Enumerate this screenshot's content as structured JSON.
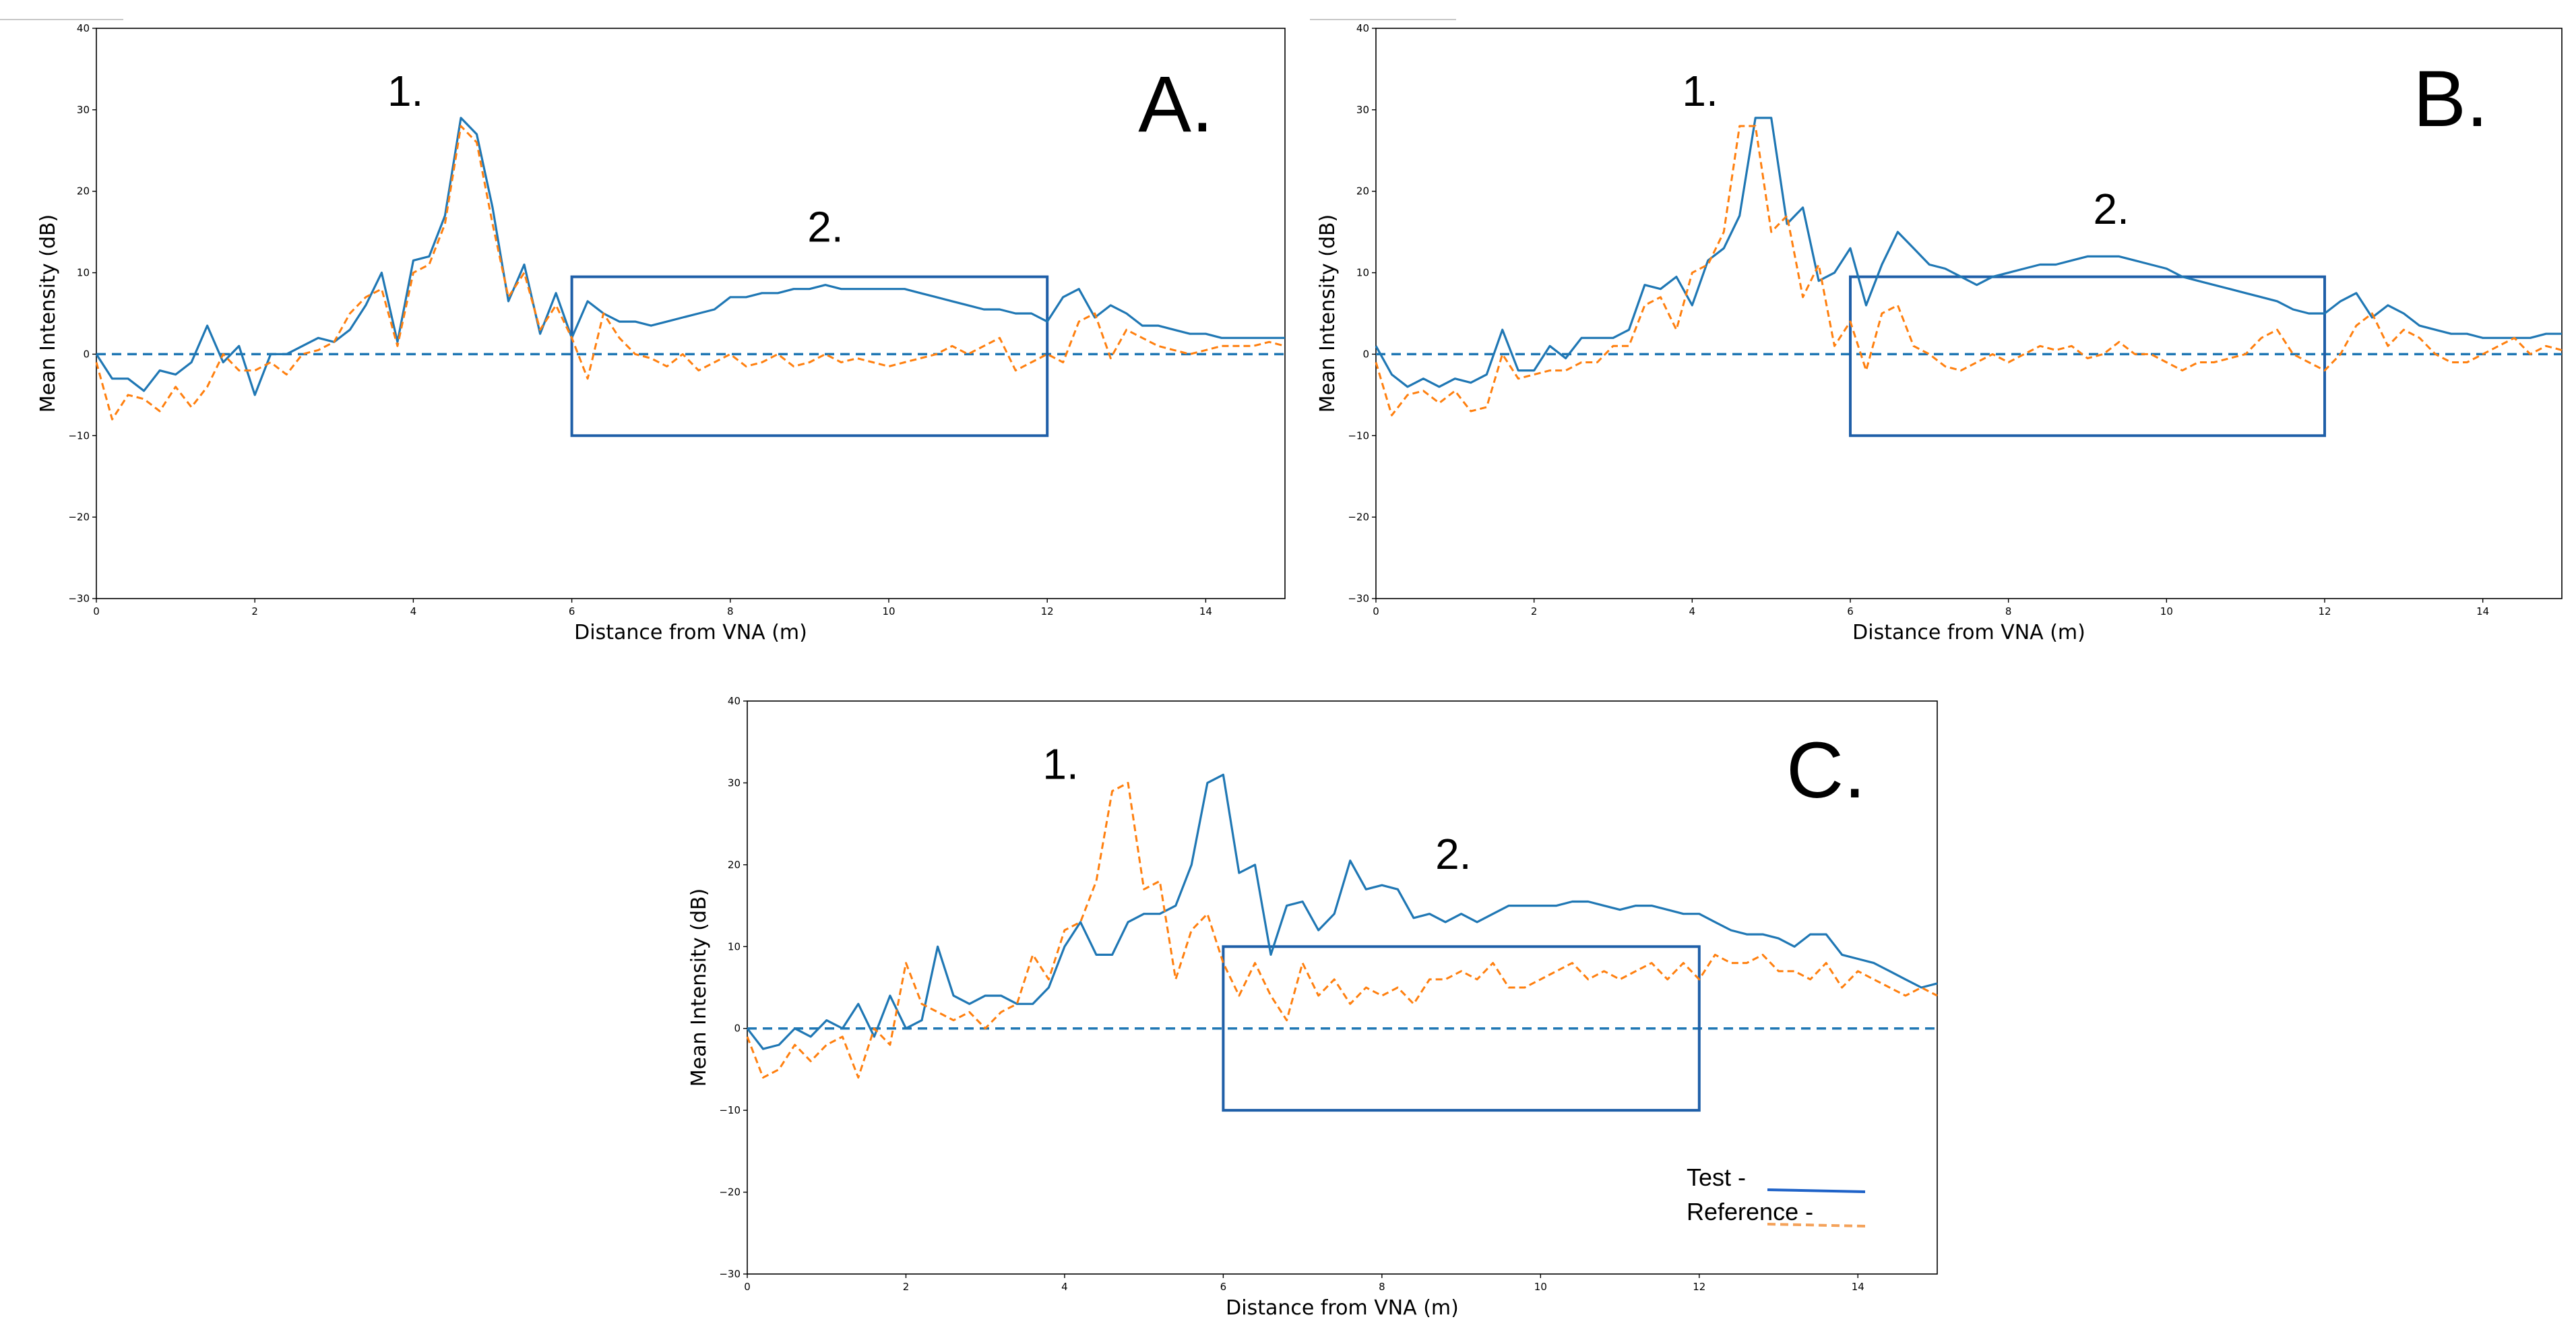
{
  "chart_data": [
    {
      "panel": "A.",
      "type": "line",
      "xlabel": "Distance from VNA (m)",
      "ylabel": "Mean Intensity (dB)",
      "xlim": [
        0,
        15
      ],
      "ylim": [
        -30,
        40
      ],
      "xticks": [
        0,
        2,
        4,
        6,
        8,
        10,
        12,
        14
      ],
      "yticks": [
        -30,
        -20,
        -10,
        0,
        10,
        20,
        30,
        40
      ],
      "baseline": 0,
      "annotations": [
        {
          "label": "1.",
          "x": 3.9,
          "y": 30.5
        },
        {
          "label": "2.",
          "x": 9.2,
          "y": 13.8
        }
      ],
      "region_box": {
        "x0": 6,
        "x1": 12,
        "y0": -10,
        "y1": 9.5
      },
      "series": [
        {
          "name": "Test",
          "x": [
            0,
            0.2,
            0.4,
            0.6,
            0.8,
            1.0,
            1.2,
            1.4,
            1.6,
            1.8,
            2.0,
            2.2,
            2.4,
            2.6,
            2.8,
            3.0,
            3.2,
            3.4,
            3.6,
            3.8,
            4.0,
            4.2,
            4.4,
            4.6,
            4.8,
            5.0,
            5.2,
            5.4,
            5.6,
            5.8,
            6.0,
            6.2,
            6.4,
            6.6,
            6.8,
            7.0,
            7.2,
            7.4,
            7.6,
            7.8,
            8.0,
            8.2,
            8.4,
            8.6,
            8.8,
            9.0,
            9.2,
            9.4,
            9.6,
            9.8,
            10.0,
            10.2,
            10.4,
            10.6,
            10.8,
            11.0,
            11.2,
            11.4,
            11.6,
            11.8,
            12.0,
            12.2,
            12.4,
            12.6,
            12.8,
            13.0,
            13.2,
            13.4,
            13.6,
            13.8,
            14.0,
            14.2,
            14.4,
            14.6,
            14.8,
            15.0
          ],
          "values": [
            0,
            -3,
            -3,
            -4.5,
            -2,
            -2.5,
            -1,
            3.5,
            -1,
            1,
            -5,
            0,
            0,
            1,
            2,
            1.5,
            3,
            6,
            10,
            1.5,
            11.5,
            12,
            17,
            29,
            27,
            18,
            6.5,
            11,
            2.5,
            7.5,
            2,
            6.5,
            5,
            4,
            4,
            3.5,
            4,
            4.5,
            5,
            5.5,
            7,
            7,
            7.5,
            7.5,
            8,
            8,
            8.5,
            8,
            8,
            8,
            8,
            8,
            7.5,
            7,
            6.5,
            6,
            5.5,
            5.5,
            5,
            5,
            4,
            7,
            8,
            4.5,
            6,
            5,
            3.5,
            3.5,
            3,
            2.5,
            2.5,
            2,
            2,
            2,
            2,
            2
          ]
        },
        {
          "name": "Reference",
          "x": [
            0,
            0.2,
            0.4,
            0.6,
            0.8,
            1.0,
            1.2,
            1.4,
            1.6,
            1.8,
            2.0,
            2.2,
            2.4,
            2.6,
            2.8,
            3.0,
            3.2,
            3.4,
            3.6,
            3.8,
            4.0,
            4.2,
            4.4,
            4.6,
            4.8,
            5.0,
            5.2,
            5.4,
            5.6,
            5.8,
            6.0,
            6.2,
            6.4,
            6.6,
            6.8,
            7.0,
            7.2,
            7.4,
            7.6,
            7.8,
            8.0,
            8.2,
            8.4,
            8.6,
            8.8,
            9.0,
            9.2,
            9.4,
            9.6,
            9.8,
            10.0,
            10.2,
            10.4,
            10.6,
            10.8,
            11.0,
            11.2,
            11.4,
            11.6,
            11.8,
            12.0,
            12.2,
            12.4,
            12.6,
            12.8,
            13.0,
            13.2,
            13.4,
            13.6,
            13.8,
            14.0,
            14.2,
            14.4,
            14.6,
            14.8,
            15.0
          ],
          "values": [
            -1,
            -8,
            -5,
            -5.5,
            -7,
            -4,
            -6.5,
            -4,
            0,
            -2,
            -2,
            -1,
            -2.5,
            0,
            0.5,
            1.5,
            5,
            7,
            8,
            1,
            10,
            11,
            16,
            28,
            26,
            16,
            7,
            10,
            3,
            6,
            2,
            -3,
            5,
            2,
            0,
            -0.5,
            -1.5,
            0,
            -2,
            -1,
            0,
            -1.5,
            -1,
            0,
            -1.5,
            -1,
            0,
            -1,
            -0.5,
            -1,
            -1.5,
            -1,
            -0.5,
            0,
            1,
            0,
            1,
            2,
            -2,
            -1,
            0,
            -1,
            4,
            5,
            -0.5,
            3,
            2,
            1,
            0.5,
            0,
            0.5,
            1,
            1,
            1,
            1.5,
            1
          ]
        }
      ]
    },
    {
      "panel": "B.",
      "type": "line",
      "xlabel": "Distance from VNA (m)",
      "ylabel": "Mean Intensity (dB)",
      "xlim": [
        0,
        15
      ],
      "ylim": [
        -30,
        40
      ],
      "xticks": [
        0,
        2,
        4,
        6,
        8,
        10,
        12,
        14
      ],
      "yticks": [
        -30,
        -20,
        -10,
        0,
        10,
        20,
        30,
        40
      ],
      "baseline": 0,
      "annotations": [
        {
          "label": "1.",
          "x": 4.1,
          "y": 30.5
        },
        {
          "label": "2.",
          "x": 9.3,
          "y": 16
        }
      ],
      "region_box": {
        "x0": 6,
        "x1": 12,
        "y0": -10,
        "y1": 9.5
      },
      "series": [
        {
          "name": "Test",
          "x": [
            0,
            0.2,
            0.4,
            0.6,
            0.8,
            1.0,
            1.2,
            1.4,
            1.6,
            1.8,
            2.0,
            2.2,
            2.4,
            2.6,
            2.8,
            3.0,
            3.2,
            3.4,
            3.6,
            3.8,
            4.0,
            4.2,
            4.4,
            4.6,
            4.8,
            5.0,
            5.2,
            5.4,
            5.6,
            5.8,
            6.0,
            6.2,
            6.4,
            6.6,
            6.8,
            7.0,
            7.2,
            7.4,
            7.6,
            7.8,
            8.0,
            8.2,
            8.4,
            8.6,
            8.8,
            9.0,
            9.2,
            9.4,
            9.6,
            9.8,
            10.0,
            10.2,
            10.4,
            10.6,
            10.8,
            11.0,
            11.2,
            11.4,
            11.6,
            11.8,
            12.0,
            12.2,
            12.4,
            12.6,
            12.8,
            13.0,
            13.2,
            13.4,
            13.6,
            13.8,
            14.0,
            14.2,
            14.4,
            14.6,
            14.8,
            15.0
          ],
          "values": [
            1,
            -2.5,
            -4,
            -3,
            -4,
            -3,
            -3.5,
            -2.5,
            3,
            -2,
            -2,
            1,
            -0.5,
            2,
            2,
            2,
            3,
            8.5,
            8,
            9.5,
            6,
            11.5,
            13,
            17,
            29,
            29,
            16,
            18,
            9,
            10,
            13,
            6,
            11,
            15,
            13,
            11,
            10.5,
            9.5,
            8.5,
            9.5,
            10,
            10.5,
            11,
            11,
            11.5,
            12,
            12,
            12,
            11.5,
            11,
            10.5,
            9.5,
            9,
            8.5,
            8,
            7.5,
            7,
            6.5,
            5.5,
            5,
            5,
            6.5,
            7.5,
            4.5,
            6,
            5,
            3.5,
            3,
            2.5,
            2.5,
            2,
            2,
            2,
            2,
            2.5,
            2.5
          ]
        },
        {
          "name": "Reference",
          "x": [
            0,
            0.2,
            0.4,
            0.6,
            0.8,
            1.0,
            1.2,
            1.4,
            1.6,
            1.8,
            2.0,
            2.2,
            2.4,
            2.6,
            2.8,
            3.0,
            3.2,
            3.4,
            3.6,
            3.8,
            4.0,
            4.2,
            4.4,
            4.6,
            4.8,
            5.0,
            5.2,
            5.4,
            5.6,
            5.8,
            6.0,
            6.2,
            6.4,
            6.6,
            6.8,
            7.0,
            7.2,
            7.4,
            7.6,
            7.8,
            8.0,
            8.2,
            8.4,
            8.6,
            8.8,
            9.0,
            9.2,
            9.4,
            9.6,
            9.8,
            10.0,
            10.2,
            10.4,
            10.6,
            10.8,
            11.0,
            11.2,
            11.4,
            11.6,
            11.8,
            12.0,
            12.2,
            12.4,
            12.6,
            12.8,
            13.0,
            13.2,
            13.4,
            13.6,
            13.8,
            14.0,
            14.2,
            14.4,
            14.6,
            14.8,
            15.0
          ],
          "values": [
            -1,
            -7.5,
            -5,
            -4.5,
            -6,
            -4.5,
            -7,
            -6.5,
            0,
            -3,
            -2.5,
            -2,
            -2,
            -1,
            -1,
            1,
            1,
            6,
            7,
            3,
            10,
            11,
            15,
            28,
            28,
            15,
            17,
            7,
            11,
            1,
            4,
            -2,
            5,
            6,
            1,
            0,
            -1.5,
            -2,
            -1,
            0,
            -1,
            0,
            1,
            0.5,
            1,
            -0.5,
            0,
            1.5,
            0,
            0,
            -1,
            -2,
            -1,
            -1,
            -0.5,
            0,
            2,
            3,
            0,
            -1,
            -2,
            0,
            3.5,
            5,
            1,
            3,
            2,
            0,
            -1,
            -1,
            0,
            1,
            2,
            0,
            1,
            0.5
          ]
        }
      ]
    },
    {
      "panel": "C.",
      "type": "line",
      "xlabel": "Distance from VNA (m)",
      "ylabel": "Mean Intensity (dB)",
      "xlim": [
        0,
        15
      ],
      "ylim": [
        -30,
        40
      ],
      "xticks": [
        0,
        2,
        4,
        6,
        8,
        10,
        12,
        14
      ],
      "yticks": [
        -30,
        -20,
        -10,
        0,
        10,
        20,
        30,
        40
      ],
      "baseline": 0,
      "annotations": [
        {
          "label": "1.",
          "x": 3.95,
          "y": 30.5
        },
        {
          "label": "2.",
          "x": 8.9,
          "y": 19.5
        }
      ],
      "region_box": {
        "x0": 6,
        "x1": 12,
        "y0": -10,
        "y1": 10
      },
      "legend": [
        {
          "label": "Test -"
        },
        {
          "label": "Reference -"
        }
      ],
      "series": [
        {
          "name": "Test",
          "x": [
            0,
            0.2,
            0.4,
            0.6,
            0.8,
            1.0,
            1.2,
            1.4,
            1.6,
            1.8,
            2.0,
            2.2,
            2.4,
            2.6,
            2.8,
            3.0,
            3.2,
            3.4,
            3.6,
            3.8,
            4.0,
            4.2,
            4.4,
            4.6,
            4.8,
            5.0,
            5.2,
            5.4,
            5.6,
            5.8,
            6.0,
            6.2,
            6.4,
            6.6,
            6.8,
            7.0,
            7.2,
            7.4,
            7.6,
            7.8,
            8.0,
            8.2,
            8.4,
            8.6,
            8.8,
            9.0,
            9.2,
            9.4,
            9.6,
            9.8,
            10.0,
            10.2,
            10.4,
            10.6,
            10.8,
            11.0,
            11.2,
            11.4,
            11.6,
            11.8,
            12.0,
            12.2,
            12.4,
            12.6,
            12.8,
            13.0,
            13.2,
            13.4,
            13.6,
            13.8,
            14.0,
            14.2,
            14.4,
            14.6,
            14.8,
            15.0
          ],
          "values": [
            0,
            -2.5,
            -2,
            0,
            -1,
            1,
            0,
            3,
            -1,
            4,
            0,
            1,
            10,
            4,
            3,
            4,
            4,
            3,
            3,
            5,
            10,
            13,
            9,
            9,
            13,
            14,
            14,
            15,
            20,
            30,
            31,
            19,
            20,
            9,
            15,
            15.5,
            12,
            14,
            20.5,
            17,
            17.5,
            17,
            13.5,
            14,
            13,
            14,
            13,
            14,
            15,
            15,
            15,
            15,
            15.5,
            15.5,
            15,
            14.5,
            15,
            15,
            14.5,
            14,
            14,
            13,
            12,
            11.5,
            11.5,
            11,
            10,
            11.5,
            11.5,
            9,
            8.5,
            8,
            7,
            6,
            5,
            5.5
          ]
        },
        {
          "name": "Reference",
          "x": [
            0,
            0.2,
            0.4,
            0.6,
            0.8,
            1.0,
            1.2,
            1.4,
            1.6,
            1.8,
            2.0,
            2.2,
            2.4,
            2.6,
            2.8,
            3.0,
            3.2,
            3.4,
            3.6,
            3.8,
            4.0,
            4.2,
            4.4,
            4.6,
            4.8,
            5.0,
            5.2,
            5.4,
            5.6,
            5.8,
            6.0,
            6.2,
            6.4,
            6.6,
            6.8,
            7.0,
            7.2,
            7.4,
            7.6,
            7.8,
            8.0,
            8.2,
            8.4,
            8.6,
            8.8,
            9.0,
            9.2,
            9.4,
            9.6,
            9.8,
            10.0,
            10.2,
            10.4,
            10.6,
            10.8,
            11.0,
            11.2,
            11.4,
            11.6,
            11.8,
            12.0,
            12.2,
            12.4,
            12.6,
            12.8,
            13.0,
            13.2,
            13.4,
            13.6,
            13.8,
            14.0,
            14.2,
            14.4,
            14.6,
            14.8,
            15.0
          ],
          "values": [
            -1,
            -6,
            -5,
            -2,
            -4,
            -2,
            -1,
            -6,
            0,
            -2,
            8,
            3,
            2,
            1,
            2,
            0,
            2,
            3,
            9,
            6,
            12,
            13,
            18,
            29,
            30,
            17,
            18,
            6,
            12,
            14,
            8,
            4,
            8,
            4,
            1,
            8,
            4,
            6,
            3,
            5,
            4,
            5,
            3,
            6,
            6,
            7,
            6,
            8,
            5,
            5,
            6,
            7,
            8,
            6,
            7,
            6,
            7,
            8,
            6,
            8,
            6,
            9,
            8,
            8,
            9,
            7,
            7,
            6,
            8,
            5,
            7,
            6,
            5,
            4,
            5,
            4
          ]
        }
      ]
    }
  ]
}
